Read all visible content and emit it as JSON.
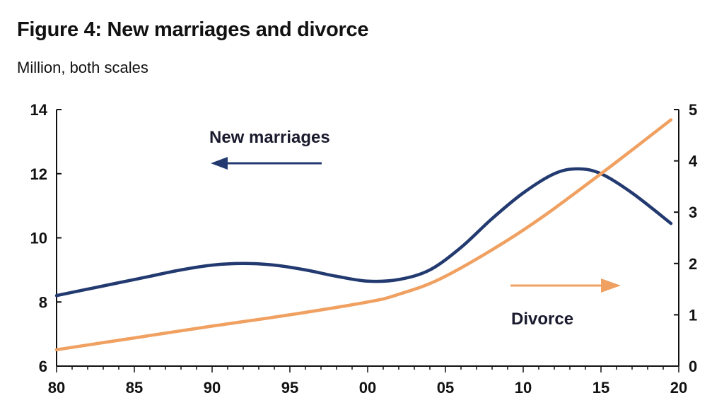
{
  "chart_data": {
    "type": "line",
    "title": "Figure 4: New marriages and divorce",
    "subtitle": "Million, both scales",
    "x_ticks": [
      "80",
      "85",
      "90",
      "95",
      "00",
      "05",
      "10",
      "15",
      "20"
    ],
    "x_range": [
      1980,
      2020
    ],
    "y_left": {
      "range": [
        6,
        14
      ],
      "ticks": [
        "6",
        "8",
        "10",
        "12",
        "14"
      ]
    },
    "y_right": {
      "range": [
        0,
        5
      ],
      "ticks": [
        "0",
        "1",
        "2",
        "3",
        "4",
        "5"
      ]
    },
    "series": [
      {
        "name": "New marriages",
        "axis": "left",
        "color": "#223a70",
        "x": [
          1980,
          1982,
          1984,
          1986,
          1988,
          1990,
          1992,
          1994,
          1996,
          1998,
          2000,
          2002,
          2004,
          2006,
          2008,
          2010,
          2012,
          2013.5,
          2015,
          2017,
          2019.5
        ],
        "y": [
          8.2,
          8.4,
          8.6,
          8.8,
          9.0,
          9.15,
          9.2,
          9.15,
          9.0,
          8.8,
          8.65,
          8.7,
          9.0,
          9.7,
          10.6,
          11.4,
          12.0,
          12.15,
          12.0,
          11.4,
          10.45
        ]
      },
      {
        "name": "Divorce",
        "axis": "right",
        "color": "#f0a060",
        "x": [
          1980,
          1985,
          1990,
          1995,
          2000,
          2002,
          2005,
          2010,
          2015,
          2019.5
        ],
        "y": [
          0.32,
          0.55,
          0.78,
          1.0,
          1.25,
          1.4,
          1.75,
          2.65,
          3.75,
          4.8
        ]
      }
    ],
    "annotations": [
      {
        "text": "New marriages",
        "arrow": "left",
        "series": "New marriages"
      },
      {
        "text": "Divorce",
        "arrow": "right",
        "series": "Divorce"
      }
    ]
  }
}
